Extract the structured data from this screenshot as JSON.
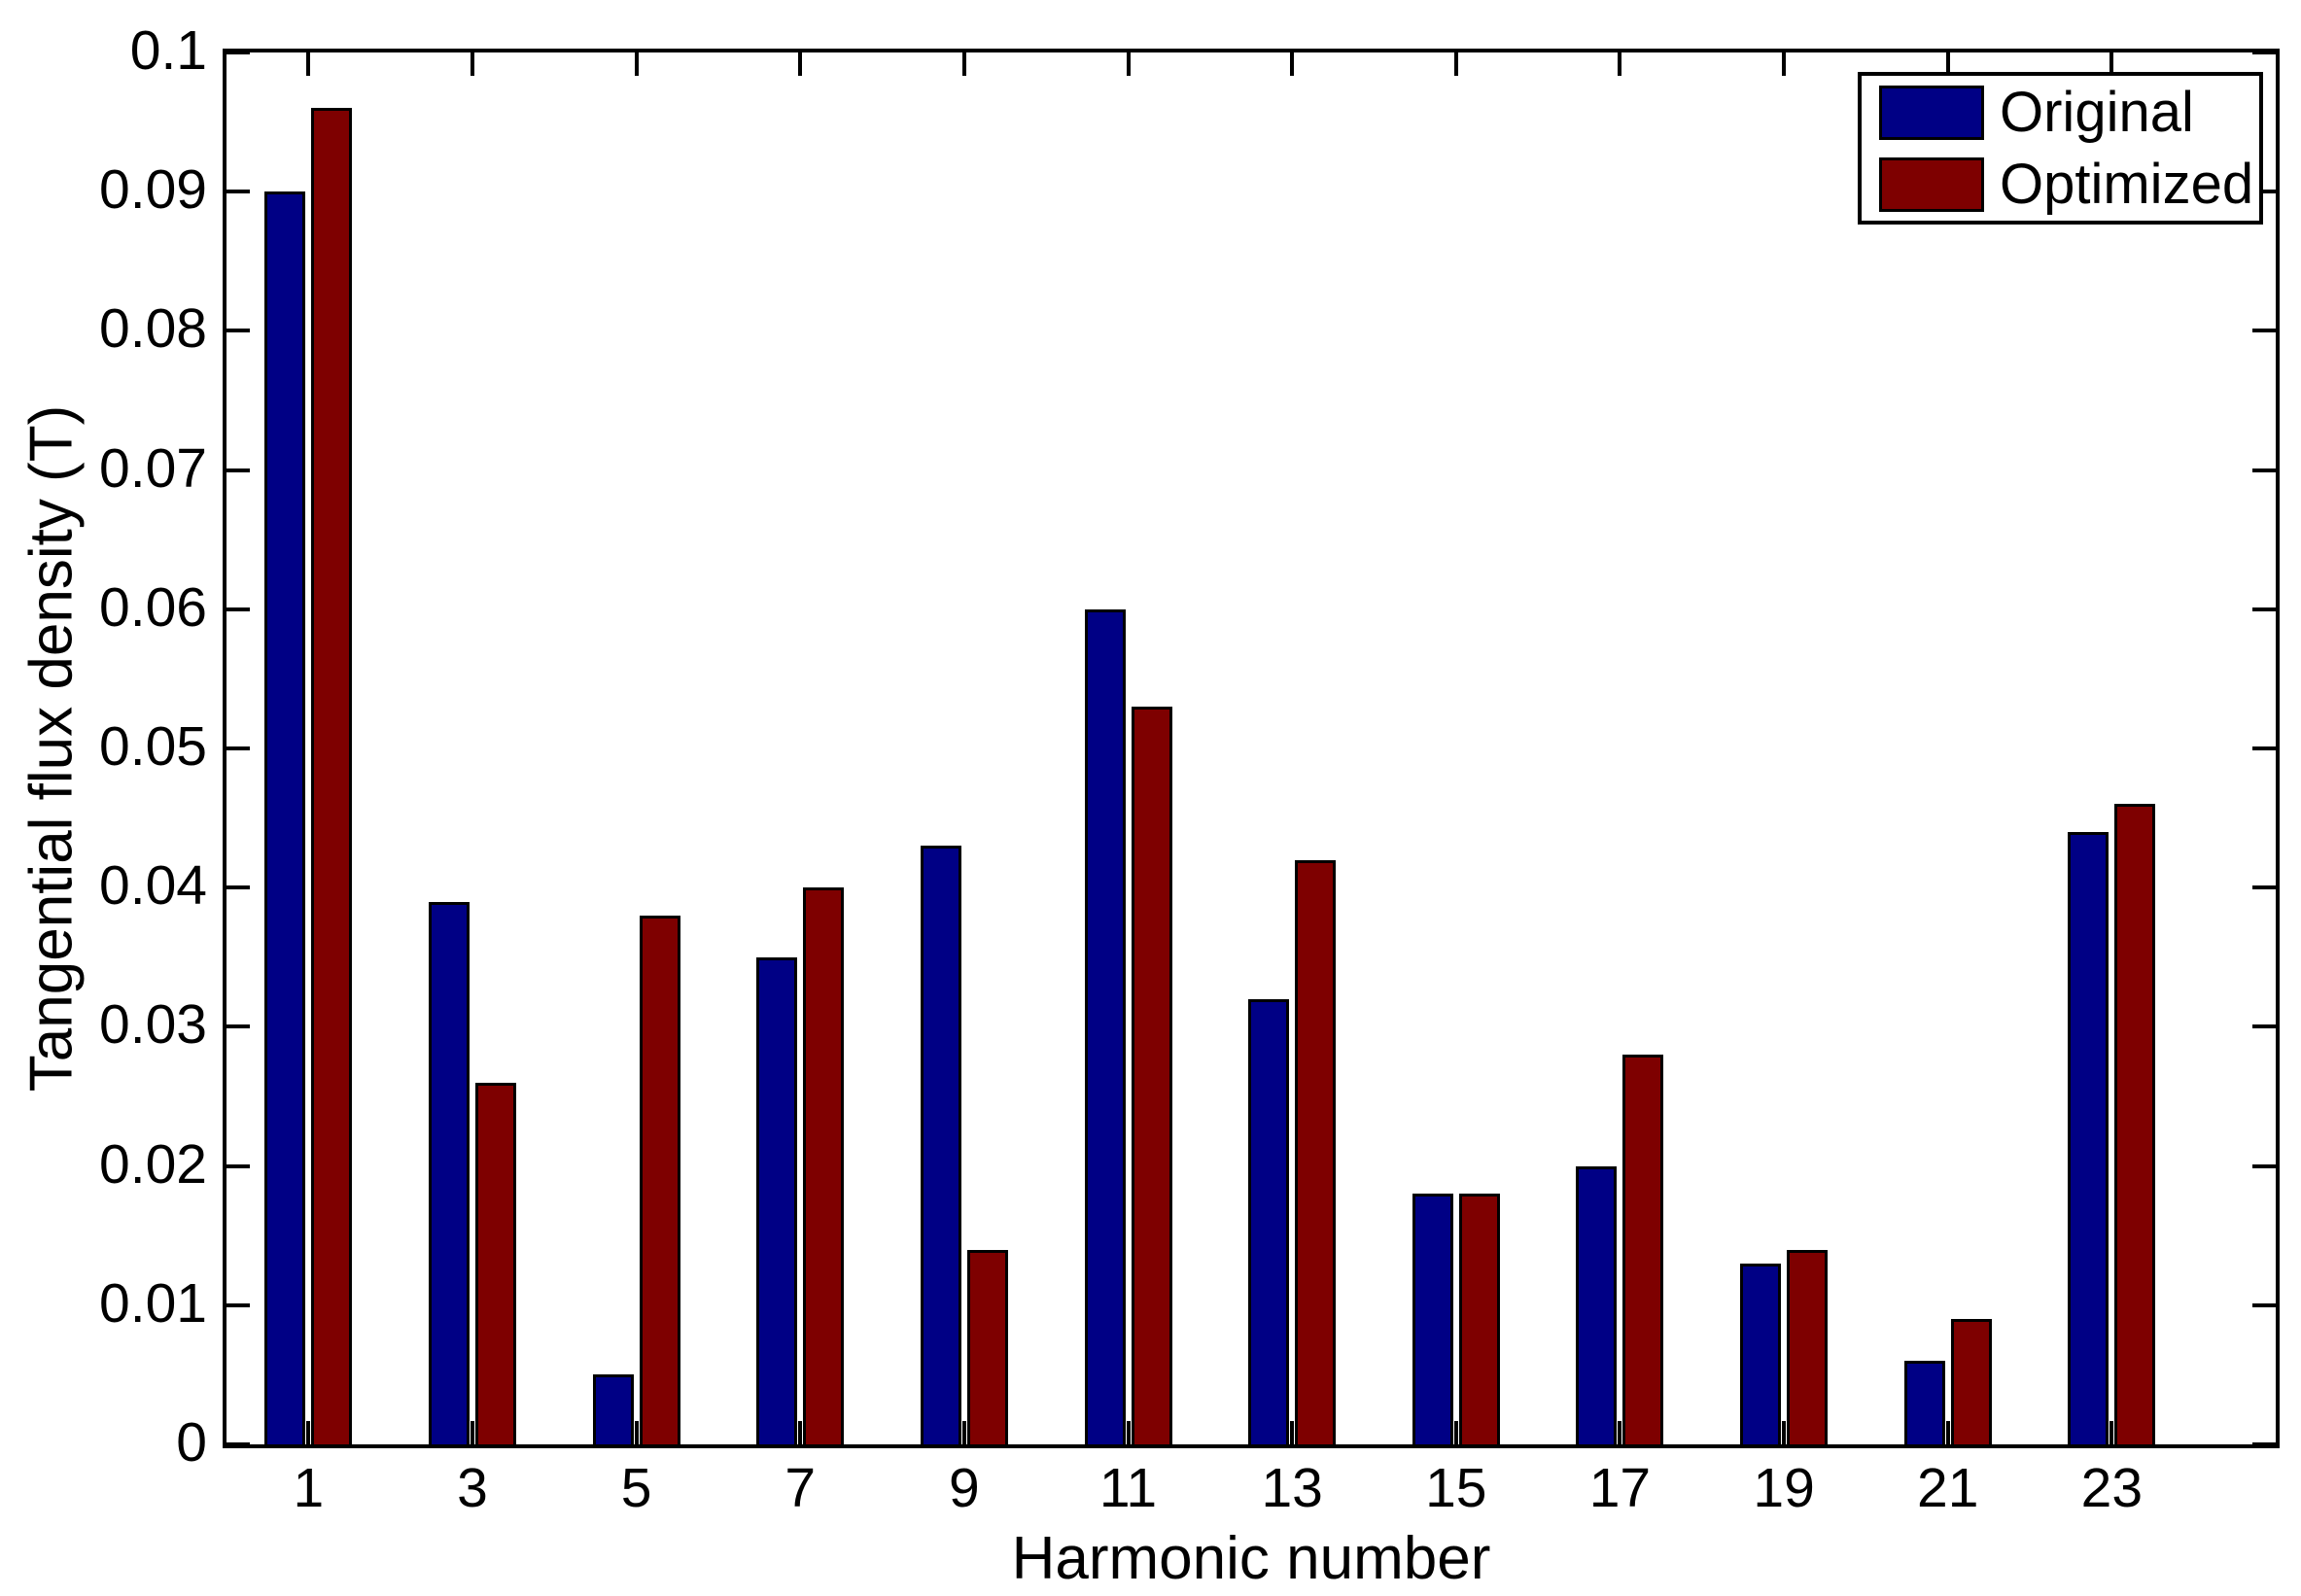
{
  "chart_data": {
    "type": "bar",
    "title": "",
    "xlabel": "Harmonic number",
    "ylabel": "Tangential flux density (T)",
    "categories": [
      "1",
      "3",
      "5",
      "7",
      "9",
      "11",
      "13",
      "15",
      "17",
      "19",
      "21",
      "23"
    ],
    "category_positions": [
      1,
      3,
      5,
      7,
      9,
      11,
      13,
      15,
      17,
      19,
      21,
      23
    ],
    "series": [
      {
        "name": "Original",
        "color": "#000085",
        "values": [
          0.09,
          0.039,
          0.005,
          0.035,
          0.043,
          0.06,
          0.032,
          0.018,
          0.02,
          0.013,
          0.006,
          0.044
        ]
      },
      {
        "name": "Optimized",
        "color": "#7e0000",
        "values": [
          0.096,
          0.026,
          0.038,
          0.04,
          0.014,
          0.053,
          0.042,
          0.018,
          0.028,
          0.014,
          0.009,
          0.046
        ]
      }
    ],
    "xlim": [
      0,
      25
    ],
    "ylim": [
      0,
      0.1
    ],
    "yticks": [
      "0",
      "0.01",
      "0.02",
      "0.03",
      "0.04",
      "0.05",
      "0.06",
      "0.07",
      "0.08",
      "0.09",
      "0.1"
    ],
    "grid": false,
    "legend_position": "top-right",
    "axis_color": "#000000",
    "background_color": "#ffffff"
  }
}
